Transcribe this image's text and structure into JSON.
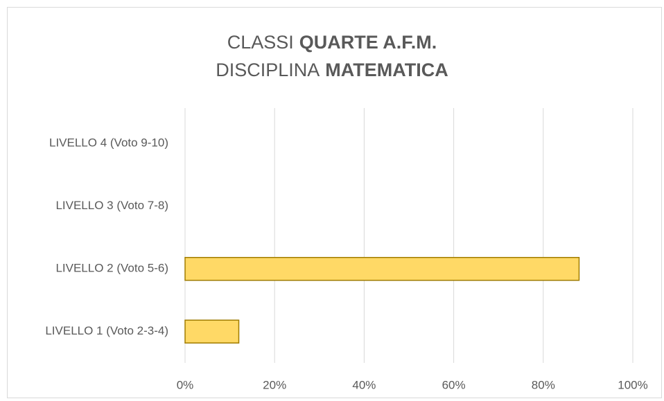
{
  "chart_data": {
    "type": "barh",
    "title": {
      "line1": [
        "CLASSI",
        "QUARTE A.F.M."
      ],
      "line2": [
        "DISCIPLINA",
        "MATEMATICA"
      ]
    },
    "categories": [
      "LIVELLO 1 (Voto 2-3-4)",
      "LIVELLO 2 (Voto 5-6)",
      "LIVELLO 3 (Voto 7-8)",
      "LIVELLO 4 (Voto 9-10)"
    ],
    "values": [
      12,
      88,
      0,
      0
    ],
    "color": "#ffd966",
    "edge_color": "#a07c00",
    "xlim": [
      0,
      100
    ],
    "xticks": [
      {
        "value": 0,
        "label": "0%"
      },
      {
        "value": 20,
        "label": "20%"
      },
      {
        "value": 40,
        "label": "40%"
      },
      {
        "value": 60,
        "label": "60%"
      },
      {
        "value": 80,
        "label": "80%"
      },
      {
        "value": 100,
        "label": "100%"
      }
    ],
    "grid": true
  }
}
